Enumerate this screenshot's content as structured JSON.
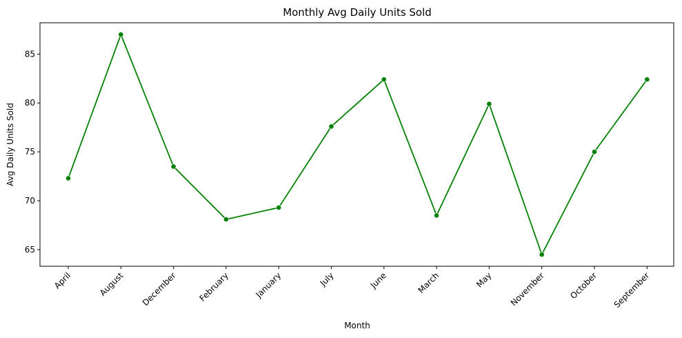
{
  "chart_data": {
    "type": "line",
    "title": "Monthly Avg Daily Units Sold",
    "xlabel": "Month",
    "ylabel": "Avg Daily Units Sold",
    "categories": [
      "April",
      "August",
      "December",
      "February",
      "January",
      "July",
      "June",
      "March",
      "May",
      "November",
      "October",
      "September"
    ],
    "series": [
      {
        "values": [
          72.3,
          87.0,
          73.5,
          68.1,
          69.3,
          77.6,
          82.4,
          68.5,
          79.9,
          64.5,
          75.0,
          82.4
        ],
        "color": "#008000"
      }
    ],
    "ylim": [
      63.3,
      88.2
    ],
    "yticks": [
      65,
      70,
      75,
      80,
      85
    ],
    "grid": false,
    "marker": "circle"
  }
}
